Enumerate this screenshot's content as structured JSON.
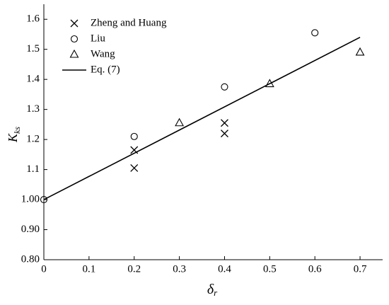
{
  "chart_data": {
    "type": "scatter",
    "xlabel": "δ",
    "xlabel_sub": "r",
    "ylabel": "K",
    "ylabel_sub": "ks",
    "xlim": [
      0,
      0.75
    ],
    "ylim": [
      0.8,
      1.65
    ],
    "xticks": [
      {
        "value": 0,
        "label": "0"
      },
      0.1,
      0.2,
      0.3,
      0.4,
      0.5,
      0.6,
      0.7
    ],
    "yticks": [
      {
        "value": 0.8,
        "label": "0.80"
      },
      {
        "value": 0.9,
        "label": "0.90"
      },
      {
        "value": 1.0,
        "label": "1.00"
      },
      1.1,
      1.2,
      1.3,
      1.4,
      1.5,
      1.6
    ],
    "legend": "upper left",
    "series": [
      {
        "name": "Zheng and Huang",
        "marker": "x",
        "color": "#000000",
        "x": [
          0.2,
          0.2,
          0.4,
          0.4
        ],
        "values": [
          1.165,
          1.105,
          1.255,
          1.22
        ]
      },
      {
        "name": "Liu",
        "marker": "circle",
        "color": "#000000",
        "x": [
          0,
          0.2,
          0.4,
          0.6
        ],
        "values": [
          1.0,
          1.21,
          1.375,
          1.555
        ]
      },
      {
        "name": "Wang",
        "marker": "triangle",
        "color": "#000000",
        "x": [
          0.3,
          0.5,
          0.7
        ],
        "values": [
          1.255,
          1.385,
          1.49
        ]
      },
      {
        "name": "Eq. (7)",
        "marker": "line",
        "color": "#000000",
        "x": [
          0,
          0.7
        ],
        "values": [
          1.0,
          1.54
        ]
      }
    ]
  }
}
